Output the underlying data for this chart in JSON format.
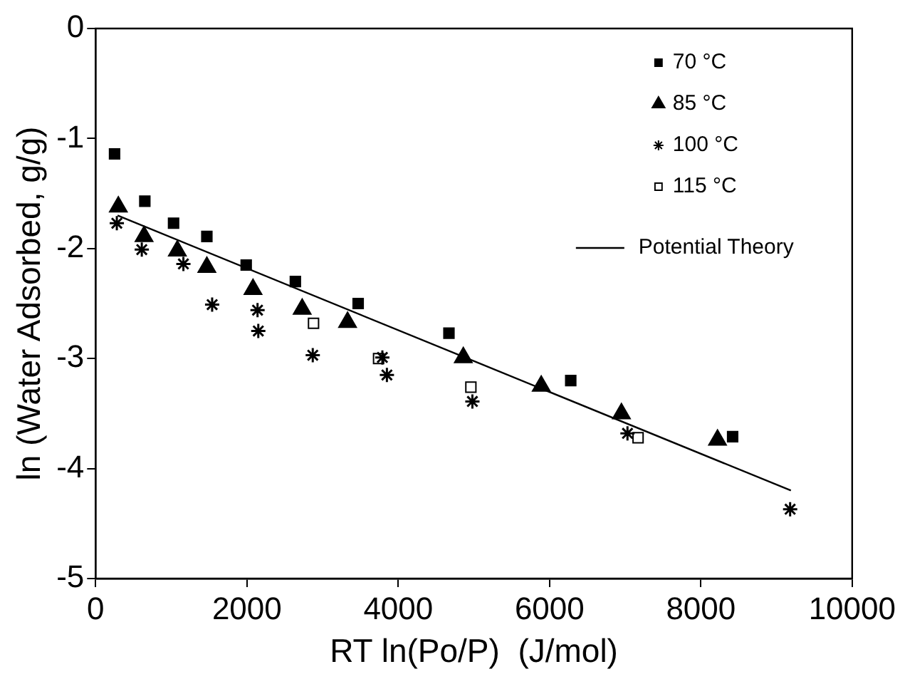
{
  "chart_data": {
    "type": "scatter",
    "xlabel": "RT ln(Po/P)  (J/mol)",
    "ylabel": "ln (Water Adsorbed, g/g)",
    "xlim": [
      0,
      10000
    ],
    "xticks": [
      0,
      2000,
      4000,
      6000,
      8000,
      10000
    ],
    "ylim": [
      -5,
      0
    ],
    "yticks": [
      -5,
      -4,
      -3,
      -2,
      -1,
      0
    ],
    "grid": false,
    "legend": "top right",
    "series": [
      {
        "name": "70 °C",
        "color": "#000000",
        "marker": "square",
        "x": [
          250,
          650,
          1030,
          1470,
          1990,
          2640,
          3470,
          4670,
          6280,
          8420
        ],
        "values": [
          -1.14,
          -1.57,
          -1.77,
          -1.89,
          -2.15,
          -2.3,
          -2.5,
          -2.77,
          -3.2,
          -3.71
        ]
      },
      {
        "name": "85 °C",
        "color": "#000000",
        "marker": "triangle",
        "x": [
          300,
          640,
          1080,
          1470,
          2080,
          2730,
          3330,
          4860,
          5890,
          6950,
          8220
        ],
        "values": [
          -1.62,
          -1.89,
          -2.02,
          -2.17,
          -2.37,
          -2.55,
          -2.67,
          -2.99,
          -3.25,
          -3.5,
          -3.74
        ]
      },
      {
        "name": "100 °C",
        "color": "#000000",
        "marker": "cross",
        "x": [
          280,
          610,
          1160,
          1540,
          2140,
          2150,
          2870,
          3790,
          3850,
          4980,
          7030,
          9180
        ],
        "values": [
          -1.77,
          -2.01,
          -2.14,
          -2.51,
          -2.56,
          -2.75,
          -2.97,
          -2.99,
          -3.15,
          -3.39,
          -3.68,
          -4.37
        ]
      },
      {
        "name": "115 °C",
        "color": "#000000",
        "marker": "square",
        "x": [
          2880,
          3740,
          4960,
          7170
        ],
        "values": [
          -2.68,
          -3.0,
          -3.26,
          -3.72
        ]
      },
      {
        "name": "Potential Theory",
        "type": "line",
        "color": "#000000",
        "marker": "none",
        "line_style": "solid",
        "x": [
          290,
          9190
        ],
        "values": [
          -1.7,
          -4.2
        ]
      }
    ]
  }
}
